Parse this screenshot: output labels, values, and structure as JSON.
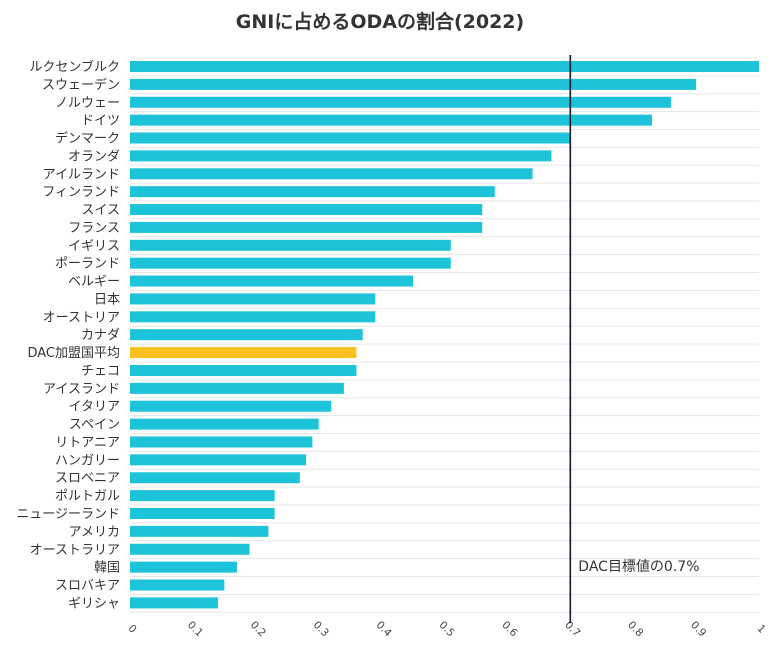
{
  "chart_data": {
    "type": "bar",
    "orientation": "horizontal",
    "title": "GNIに占めるODAの割合(2022)",
    "categories": [
      "ルクセンブルク",
      "スウェーデン",
      "ノルウェー",
      "ドイツ",
      "デンマーク",
      "オランダ",
      "アイルランド",
      "フィンランド",
      "スイス",
      "フランス",
      "イギリス",
      "ポーランド",
      "ベルギー",
      "日本",
      "オーストリア",
      "カナダ",
      "DAC加盟国平均",
      "チェコ",
      "アイスランド",
      "イタリア",
      "スペイン",
      "リトアニア",
      "ハンガリー",
      "スロベニア",
      "ポルトガル",
      "ニュージーランド",
      "アメリカ",
      "オーストラリア",
      "韓国",
      "スロバキア",
      "ギリシャ"
    ],
    "values": [
      1.0,
      0.9,
      0.86,
      0.83,
      0.7,
      0.67,
      0.64,
      0.58,
      0.56,
      0.56,
      0.51,
      0.51,
      0.45,
      0.39,
      0.39,
      0.37,
      0.36,
      0.36,
      0.34,
      0.32,
      0.3,
      0.29,
      0.28,
      0.27,
      0.23,
      0.23,
      0.22,
      0.19,
      0.17,
      0.15,
      0.14
    ],
    "highlight_category": "DAC加盟国平均",
    "xlim": [
      0,
      1
    ],
    "x_ticks": [
      "0",
      "0.1",
      "0.2",
      "0.3",
      "0.4",
      "0.5",
      "0.6",
      "0.7",
      "0.8",
      "0.9",
      "1"
    ],
    "grid": true,
    "reference_line": {
      "value": 0.7,
      "label": "DAC目標値の0.7%"
    },
    "colors": {
      "bar": "#1DC3D9",
      "highlight": "#F8C120",
      "reference_line": "#0D1B2A",
      "grid": "#E6E6E6"
    }
  }
}
